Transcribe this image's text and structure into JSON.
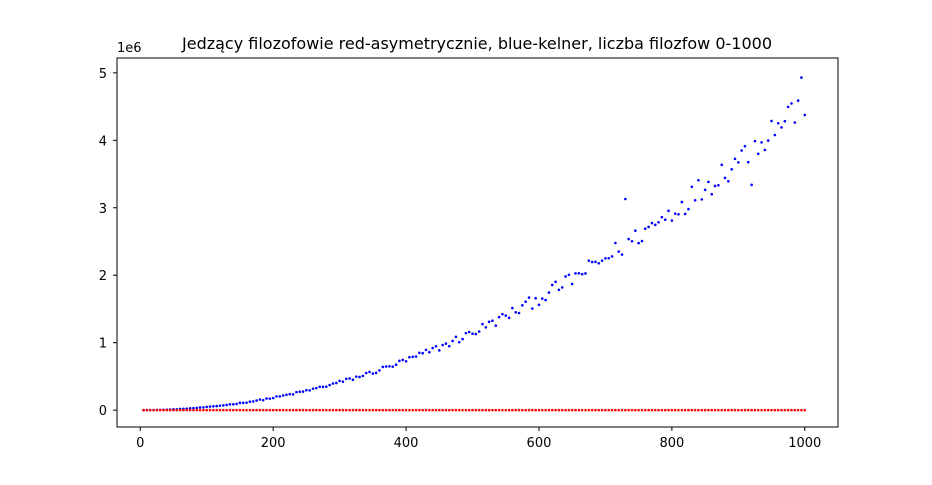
{
  "chart_data": {
    "type": "scatter",
    "title": "Jedzący filozofowie red-asymetrycznie, blue-kelner, liczba filozfow 0-1000",
    "xlabel": "",
    "ylabel": "",
    "y_offset_label": "1e6",
    "xlim": [
      -35,
      1050
    ],
    "ylim": [
      -250000,
      5220000
    ],
    "x_ticks": [
      {
        "value": 0,
        "label": "0"
      },
      {
        "value": 200,
        "label": "200"
      },
      {
        "value": 400,
        "label": "400"
      },
      {
        "value": 600,
        "label": "600"
      },
      {
        "value": 800,
        "label": "800"
      },
      {
        "value": 1000,
        "label": "1000"
      }
    ],
    "y_ticks": [
      {
        "value": 0,
        "label": "0"
      },
      {
        "value": 1000000,
        "label": "1"
      },
      {
        "value": 2000000,
        "label": "2"
      },
      {
        "value": 3000000,
        "label": "3"
      },
      {
        "value": 4000000,
        "label": "4"
      },
      {
        "value": 5000000,
        "label": "5"
      }
    ],
    "grid": false,
    "legend": "none",
    "series": [
      {
        "color": "#0000ff",
        "x_start": 5,
        "x_step": 5,
        "count": 200,
        "trend": {
          "a": 4.6,
          "p": 2.0
        },
        "noise_amplitude": 0.06,
        "outliers": [
          {
            "x": 570,
            "y": 1440000
          },
          {
            "x": 920,
            "y": 3340000
          },
          {
            "x": 995,
            "y": 4930000
          },
          {
            "x": 730,
            "y": 3130000
          }
        ]
      },
      {
        "color": "#ff0000",
        "x_start": 5,
        "x_step": 5,
        "count": 200,
        "trend": {
          "a": 0.062,
          "p": 1.0
        },
        "noise_amplitude": 0.12,
        "outliers": []
      }
    ]
  }
}
